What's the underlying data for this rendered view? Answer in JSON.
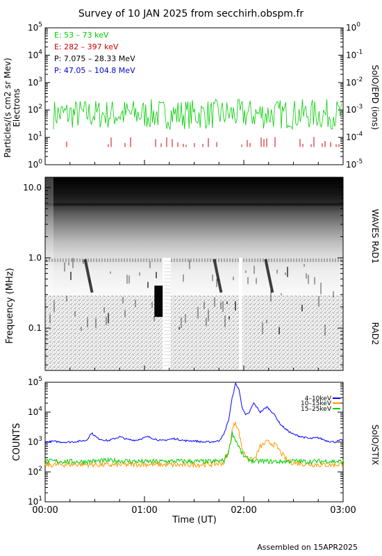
{
  "title": "Survey of 10 JAN 2025 from secchirh.obspm.fr",
  "footer": "Assembled on 15APR2025",
  "colors": {
    "green": "#00cc00",
    "red": "#cc0000",
    "black": "#000000",
    "blue": "#0000cc",
    "orange": "#ff9900",
    "stix_blue": "#0000ff"
  },
  "chart_data": [
    {
      "type": "line",
      "panel": "epd",
      "ylabel": "Particles/(s cm2 sr Mev)",
      "ylabel2": "Electrons",
      "right_label": "SolO/EPD (ions)",
      "yscale": "log",
      "ylim": [
        1,
        100000
      ],
      "y_ticks": [
        {
          "base": "10",
          "exp": "0"
        },
        {
          "base": "10",
          "exp": "1"
        },
        {
          "base": "10",
          "exp": "2"
        },
        {
          "base": "10",
          "exp": "3"
        },
        {
          "base": "10",
          "exp": "4"
        },
        {
          "base": "10",
          "exp": "5"
        }
      ],
      "y2lim": [
        1e-05,
        1.0
      ],
      "y2_ticks": [
        {
          "base": "10",
          "exp": "-5"
        },
        {
          "base": "10",
          "exp": "-4"
        },
        {
          "base": "10",
          "exp": "-3"
        },
        {
          "base": "10",
          "exp": "-2"
        },
        {
          "base": "10",
          "exp": "-1"
        },
        {
          "base": "10",
          "exp": "0"
        }
      ],
      "legend": [
        {
          "label": "E: 53 – 73 keV",
          "color": "#00cc00"
        },
        {
          "label": "E: 282 – 397 keV",
          "color": "#cc0000"
        },
        {
          "label": "P: 7.075 – 28.33 MeV",
          "color": "#000000"
        },
        {
          "label": "P: 47.05 – 104.8 MeV",
          "color": "#0000cc"
        }
      ],
      "series": [
        {
          "name": "E: 53 – 73 keV",
          "color": "#00cc00",
          "baseline": 70,
          "spread": 0.55
        },
        {
          "name": "E: 282 – 397 keV",
          "color": "#cc0000",
          "level": 5,
          "occurrence": "sporadic"
        }
      ]
    },
    {
      "type": "heatmap",
      "panel": "waves",
      "ylabel": "Frequency (MHz)",
      "yscale": "log",
      "y_ticks": [
        "0.1",
        "1.0",
        "10.0"
      ],
      "y_tick_values": [
        0.1,
        1.0,
        10.0
      ],
      "ylim": [
        0.025,
        14
      ],
      "right_labels": [
        "WAVES RAD1",
        "RAD2"
      ],
      "data_gaps_utc": [
        [
          "01:06",
          "01:16"
        ],
        [
          "01:57",
          "01:59"
        ]
      ],
      "type_iii_bursts_utc": [
        "00:25",
        "01:43",
        "02:14"
      ]
    },
    {
      "type": "line",
      "panel": "stix",
      "ylabel": "COUNTS",
      "right_label": "SolO/STIX",
      "xlabel": "Time (UT)",
      "yscale": "log",
      "ylim": [
        10,
        100000
      ],
      "y_ticks": [
        {
          "base": "10",
          "exp": "1"
        },
        {
          "base": "10",
          "exp": "2"
        },
        {
          "base": "10",
          "exp": "3"
        },
        {
          "base": "10",
          "exp": "4"
        },
        {
          "base": "10",
          "exp": "5"
        }
      ],
      "x_ticks": [
        "00:00",
        "01:00",
        "02:00",
        "03:00"
      ],
      "xlim_min": [
        0,
        180
      ],
      "legend": [
        {
          "label": "4–10keV",
          "color": "#0000ff"
        },
        {
          "label": "10–15keV",
          "color": "#ff9900"
        },
        {
          "label": "15–25keV",
          "color": "#00cc00"
        }
      ],
      "series": [
        {
          "name": "4–10keV",
          "color": "#0000ff",
          "t_min": [
            0,
            5,
            10,
            15,
            20,
            25,
            28,
            32,
            38,
            45,
            50,
            55,
            62,
            70,
            78,
            85,
            90,
            95,
            100,
            105,
            108,
            111,
            113,
            115,
            117,
            119,
            121,
            123,
            126,
            130,
            134,
            138,
            142,
            146,
            150,
            155,
            160,
            165,
            170,
            175,
            180
          ],
          "values": [
            1000,
            1050,
            1000,
            1000,
            1050,
            1150,
            2000,
            1300,
            1100,
            1500,
            1200,
            1150,
            1500,
            1100,
            1300,
            1100,
            1100,
            1000,
            1000,
            1100,
            1800,
            6000,
            30000,
            90000,
            60000,
            15000,
            8000,
            9000,
            20000,
            10000,
            15000,
            9000,
            4000,
            2500,
            1800,
            1500,
            1300,
            1400,
            1100,
            1000,
            1200
          ]
        },
        {
          "name": "10–15keV",
          "color": "#ff9900",
          "t_min": [
            0,
            20,
            40,
            60,
            80,
            100,
            108,
            111,
            113,
            115,
            117,
            119,
            121,
            124,
            127,
            130,
            134,
            137,
            140,
            143,
            146,
            150,
            160,
            170,
            180
          ],
          "values": [
            170,
            180,
            170,
            180,
            170,
            180,
            200,
            500,
            2500,
            5000,
            2200,
            600,
            350,
            250,
            300,
            700,
            1000,
            900,
            700,
            400,
            250,
            200,
            180,
            170,
            180
          ]
        },
        {
          "name": "15–25keV",
          "color": "#00cc00",
          "t_min": [
            0,
            20,
            40,
            60,
            80,
            100,
            108,
            111,
            113,
            115,
            117,
            119,
            121,
            124,
            127,
            130,
            140,
            150,
            160,
            170,
            180
          ],
          "values": [
            230,
            220,
            240,
            220,
            230,
            220,
            240,
            500,
            2000,
            1200,
            700,
            400,
            300,
            250,
            220,
            230,
            220,
            230,
            220,
            230,
            220
          ]
        }
      ]
    }
  ]
}
